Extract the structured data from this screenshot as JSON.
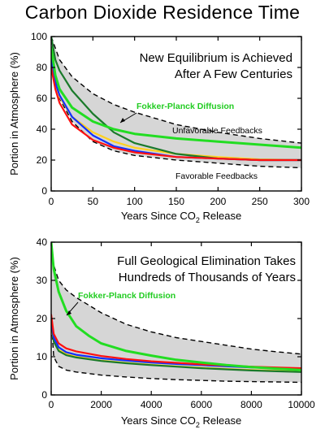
{
  "page": {
    "title": "Carbon Dioxide Residence Time"
  },
  "colors": {
    "green": "#22dd22",
    "darkgreen": "#1a7a2a",
    "blue": "#1030ff",
    "red": "#ff1010",
    "yellow": "#ffd020",
    "band": "#d6d6d6",
    "dashed": "#000000",
    "annotation_green": "#22cc22"
  },
  "chart_data": [
    {
      "type": "line",
      "xlabel_parts": [
        "Years Since CO",
        "2",
        " Release"
      ],
      "ylabel": "Portion in Atmosphere (%)",
      "xlim": [
        0,
        300
      ],
      "ylim": [
        0,
        100
      ],
      "xticks": [
        "0",
        "50",
        "100",
        "150",
        "200",
        "250",
        "300"
      ],
      "xtick_values": [
        0,
        50,
        100,
        150,
        200,
        250,
        300
      ],
      "yticks": [
        "0",
        "20",
        "40",
        "60",
        "80",
        "100"
      ],
      "ytick_values": [
        0,
        20,
        40,
        60,
        80,
        100
      ],
      "annotation_lines": [
        "New Equilibrium is Achieved",
        "After A Few Centuries"
      ],
      "labels": {
        "fokker": "Fokker-Planck Diffusion",
        "unfavorable": "Unfavorable Feedbacks",
        "favorable": "Favorable Feedbacks"
      },
      "band": {
        "x": [
          0,
          10,
          25,
          50,
          75,
          100,
          150,
          200,
          250,
          300
        ],
        "upper": [
          100,
          85,
          74,
          63,
          56,
          51,
          43,
          38,
          34,
          31
        ],
        "lower": [
          87,
          60,
          45,
          32,
          26,
          23,
          20,
          18,
          16,
          15
        ]
      },
      "series": [
        {
          "color": "green",
          "x": [
            0,
            5,
            10,
            25,
            50,
            75,
            100,
            150,
            200,
            250,
            300
          ],
          "y": [
            93,
            75,
            66,
            54,
            45,
            40,
            37,
            34,
            32,
            30,
            28
          ]
        },
        {
          "color": "darkgreen",
          "x": [
            0,
            5,
            10,
            25,
            50,
            75,
            100,
            150,
            200,
            250,
            300
          ],
          "y": [
            100,
            85,
            78,
            65,
            50,
            38,
            31,
            24,
            21,
            20,
            20
          ]
        },
        {
          "color": "blue",
          "x": [
            0,
            5,
            10,
            25,
            50,
            75,
            100,
            150,
            200,
            250,
            300
          ],
          "y": [
            85,
            70,
            62,
            48,
            36,
            29,
            26,
            22,
            21,
            20,
            20
          ]
        },
        {
          "color": "red",
          "x": [
            0,
            5,
            10,
            25,
            50,
            75,
            100,
            150,
            200,
            250,
            300
          ],
          "y": [
            80,
            66,
            57,
            43,
            33,
            28,
            25,
            22,
            21,
            20,
            20
          ]
        },
        {
          "color": "yellow",
          "x": [
            0,
            5,
            10,
            25,
            50,
            75,
            100,
            150,
            200,
            250,
            300
          ],
          "y": [
            84,
            70,
            61,
            48,
            38,
            32,
            28,
            24,
            22,
            20.5,
            20
          ]
        }
      ]
    },
    {
      "type": "line",
      "xlabel_parts": [
        "Years Since CO",
        "2",
        " Release"
      ],
      "ylabel": "Portion in Atmosphere (%)",
      "xlim": [
        0,
        10000
      ],
      "ylim": [
        0,
        40
      ],
      "xticks": [
        "0",
        "2000",
        "4000",
        "6000",
        "8000",
        "10000"
      ],
      "xtick_values": [
        0,
        2000,
        4000,
        6000,
        8000,
        10000
      ],
      "yticks": [
        "0",
        "10",
        "20",
        "30",
        "40"
      ],
      "ytick_values": [
        0,
        10,
        20,
        30,
        40
      ],
      "annotation_lines": [
        "Full Geological Elimination Takes",
        "Hundreds of Thousands of Years"
      ],
      "labels": {
        "fokker": "Fokker-Planck Diffusion"
      },
      "band": {
        "x": [
          0,
          100,
          300,
          600,
          1000,
          2000,
          3000,
          4000,
          5000,
          6000,
          7000,
          8000,
          9000,
          10000
        ],
        "upper": [
          40,
          34,
          30,
          27.5,
          25.5,
          21.5,
          18.5,
          16.5,
          15,
          14,
          13,
          12,
          11.3,
          10.7
        ],
        "lower": [
          20,
          10,
          7.5,
          6.5,
          6,
          5.2,
          4.7,
          4.3,
          4,
          3.8,
          3.6,
          3.5,
          3.4,
          3.3
        ]
      },
      "series": [
        {
          "color": "green",
          "x": [
            0,
            100,
            300,
            600,
            1000,
            1500,
            2000,
            3000,
            4000,
            5000,
            6000,
            7000,
            8000,
            9000,
            10000
          ],
          "y": [
            40,
            33,
            27,
            22,
            18,
            15.5,
            13.5,
            11.5,
            10.3,
            9.2,
            8.5,
            7.8,
            7.3,
            6.9,
            6.5
          ]
        },
        {
          "color": "darkgreen",
          "x": [
            0,
            100,
            300,
            600,
            1000,
            2000,
            3000,
            4000,
            5000,
            6000,
            7000,
            8000,
            9000,
            10000
          ],
          "y": [
            20,
            14,
            11.5,
            10.4,
            9.8,
            8.9,
            8.3,
            7.8,
            7.4,
            7.0,
            6.7,
            6.4,
            6.2,
            6.0
          ]
        },
        {
          "color": "blue",
          "x": [
            0,
            100,
            300,
            600,
            1000,
            2000,
            3000,
            4000,
            5000,
            6000,
            7000,
            8000,
            9000,
            10000
          ],
          "y": [
            20,
            15,
            12.5,
            11.2,
            10.5,
            9.6,
            9.0,
            8.5,
            8.1,
            7.8,
            7.5,
            7.2,
            7.0,
            6.8
          ]
        },
        {
          "color": "red",
          "x": [
            0,
            100,
            300,
            600,
            1000,
            2000,
            3000,
            4000,
            5000,
            6000,
            7000,
            8000,
            9000,
            10000
          ],
          "y": [
            21,
            16,
            13.5,
            12.2,
            11.4,
            10.2,
            9.4,
            8.8,
            8.4,
            8.0,
            7.7,
            7.4,
            7.2,
            7.0
          ]
        },
        {
          "color": "yellow",
          "x": [
            0,
            100,
            300,
            600,
            1000,
            2000,
            3000,
            4000,
            5000,
            6000,
            7000,
            8000,
            9000,
            10000
          ],
          "y": [
            19,
            14,
            11.8,
            10.7,
            10.0,
            9.0,
            8.4,
            7.9,
            7.5,
            7.1,
            6.8,
            6.5,
            6.3,
            6.1
          ]
        }
      ]
    }
  ]
}
